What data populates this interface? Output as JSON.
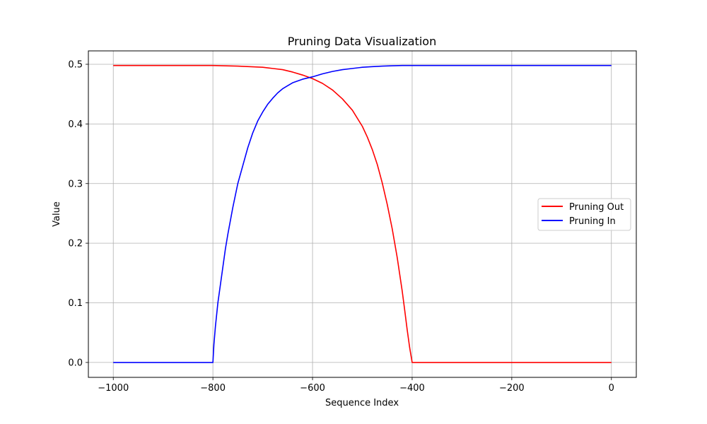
{
  "chart_data": {
    "type": "line",
    "title": "Pruning Data Visualization",
    "xlabel": "Sequence Index",
    "ylabel": "Value",
    "xlim": [
      -1050,
      50
    ],
    "ylim": [
      -0.025,
      0.5225
    ],
    "x_ticks": [
      -1000,
      -800,
      -600,
      -400,
      -200,
      0
    ],
    "x_tick_labels": [
      "−1000",
      "−800",
      "−600",
      "−400",
      "−200",
      "0"
    ],
    "y_ticks": [
      0.0,
      0.1,
      0.2,
      0.3,
      0.4,
      0.5
    ],
    "y_tick_labels": [
      "0.0",
      "0.1",
      "0.2",
      "0.3",
      "0.4",
      "0.5"
    ],
    "grid": true,
    "legend_position": "center-right",
    "series": [
      {
        "name": "Pruning Out",
        "color": "#ff0000",
        "x": [
          -1000,
          -900,
          -850,
          -800,
          -750,
          -700,
          -680,
          -660,
          -640,
          -620,
          -600,
          -580,
          -560,
          -540,
          -520,
          -500,
          -490,
          -480,
          -470,
          -460,
          -450,
          -440,
          -430,
          -420,
          -415,
          -410,
          -405,
          -402,
          -400,
          -399,
          -300,
          -200,
          -100,
          0
        ],
        "y": [
          0.498,
          0.498,
          0.498,
          0.498,
          0.497,
          0.495,
          0.493,
          0.491,
          0.487,
          0.482,
          0.476,
          0.468,
          0.457,
          0.442,
          0.423,
          0.396,
          0.378,
          0.357,
          0.332,
          0.301,
          0.265,
          0.224,
          0.176,
          0.12,
          0.088,
          0.055,
          0.025,
          0.01,
          0.0,
          0.0,
          0.0,
          0.0,
          0.0,
          0.0
        ]
      },
      {
        "name": "Pruning In",
        "color": "#0000ff",
        "x": [
          -1000,
          -900,
          -850,
          -801,
          -800,
          -798,
          -795,
          -790,
          -785,
          -780,
          -775,
          -770,
          -760,
          -750,
          -740,
          -730,
          -720,
          -710,
          -700,
          -690,
          -680,
          -670,
          -660,
          -650,
          -640,
          -620,
          -600,
          -580,
          -560,
          -540,
          -520,
          -500,
          -480,
          -460,
          -440,
          -420,
          -400,
          -300,
          -200,
          -100,
          0
        ],
        "y": [
          0.0,
          0.0,
          0.0,
          0.0,
          0.0,
          0.03,
          0.06,
          0.1,
          0.13,
          0.16,
          0.19,
          0.215,
          0.26,
          0.3,
          0.33,
          0.36,
          0.385,
          0.405,
          0.42,
          0.433,
          0.443,
          0.452,
          0.459,
          0.464,
          0.469,
          0.475,
          0.479,
          0.484,
          0.488,
          0.491,
          0.493,
          0.495,
          0.496,
          0.497,
          0.4975,
          0.498,
          0.498,
          0.498,
          0.498,
          0.498,
          0.498
        ]
      }
    ]
  }
}
